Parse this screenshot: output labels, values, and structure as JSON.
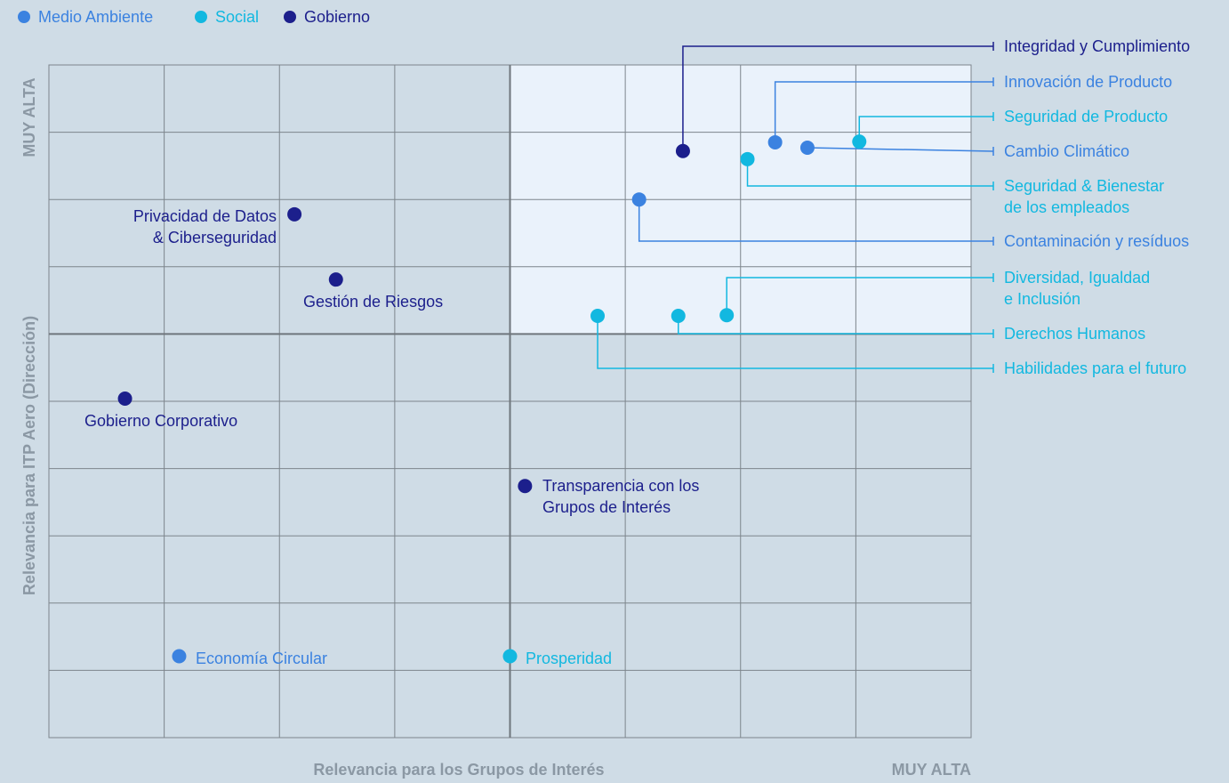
{
  "legend": [
    {
      "name": "Medio Ambiente",
      "color": "#3b82e0"
    },
    {
      "name": "Social",
      "color": "#12b8e0"
    },
    {
      "name": "Gobierno",
      "color": "#1c1f8c"
    }
  ],
  "chart_data": {
    "type": "scatter",
    "xlabel": "Relevancia para los Grupos de Interés",
    "ylabel": "Relevancia para ITP Aero (Dirección)",
    "x_max_label": "MUY ALTA",
    "y_max_label": "MUY ALTA",
    "xlim": [
      0,
      8
    ],
    "ylim": [
      0,
      10
    ],
    "grid": true,
    "legend_position": "top-left",
    "highlight_quadrant": {
      "x": [
        4,
        8
      ],
      "y": [
        6,
        10
      ],
      "color": "#eaf2fb"
    },
    "points": [
      {
        "name": "Privacidad de Datos\n& Ciberseguridad",
        "category": "Gobierno",
        "x": 2.13,
        "y": 7.78
      },
      {
        "name": "Gestión de Riesgos",
        "category": "Gobierno",
        "x": 2.49,
        "y": 6.81
      },
      {
        "name": "Gobierno Corporativo",
        "category": "Gobierno",
        "x": 0.66,
        "y": 5.04
      },
      {
        "name": "Transparencia con los\nGrupos de Interés",
        "category": "Gobierno",
        "x": 4.13,
        "y": 3.74
      },
      {
        "name": "Economía Circular",
        "category": "Medio Ambiente",
        "x": 1.13,
        "y": 1.21
      },
      {
        "name": "Prosperidad",
        "category": "Social",
        "x": 4.0,
        "y": 1.21
      },
      {
        "name": "Integridad y Cumplimiento",
        "category": "Gobierno",
        "x": 5.5,
        "y": 8.72
      },
      {
        "name": "Innovación de Producto",
        "category": "Medio Ambiente",
        "x": 6.3,
        "y": 8.85
      },
      {
        "name": "Seguridad de Producto",
        "category": "Social",
        "x": 7.03,
        "y": 8.86
      },
      {
        "name": "Cambio Climático",
        "category": "Medio Ambiente",
        "x": 6.58,
        "y": 8.77
      },
      {
        "name": "Seguridad & Bienestar\nde los empleados",
        "category": "Social",
        "x": 6.06,
        "y": 8.6
      },
      {
        "name": "Contaminación y resíduos",
        "category": "Medio Ambiente",
        "x": 5.12,
        "y": 8.0
      },
      {
        "name": "Diversidad, Igualdad\ne Inclusión",
        "category": "Social",
        "x": 5.88,
        "y": 6.28
      },
      {
        "name": "Derechos Humanos",
        "category": "Social",
        "x": 5.46,
        "y": 6.27
      },
      {
        "name": "Habilidades para el futuro",
        "category": "Social",
        "x": 4.76,
        "y": 6.27
      }
    ]
  }
}
